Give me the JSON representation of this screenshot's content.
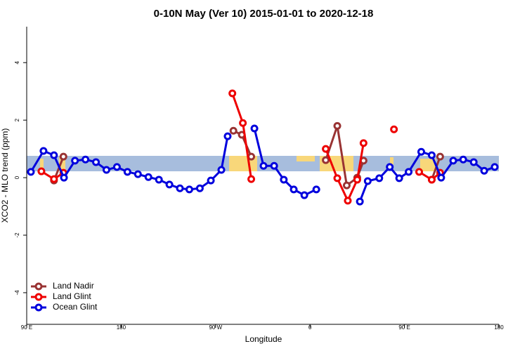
{
  "chart_data": {
    "type": "line",
    "title": "0-10N May (Ver 10)   2015-01-01 to 2020-12-18",
    "xlabel": "Longitude",
    "ylabel": "XCO2 - MLO trend (ppm)",
    "xlim": [
      90,
      540
    ],
    "ylim": [
      -5.1,
      5.25
    ],
    "xticks": [
      {
        "value": 90,
        "label": "90 E"
      },
      180,
      {
        "value": 270,
        "label": "90 W"
      },
      {
        "value": 360,
        "label": "0"
      },
      {
        "value": 450,
        "label": "90 E"
      },
      {
        "value": 540,
        "label": "180"
      }
    ],
    "yticks": [
      -4,
      -2,
      0,
      2,
      4
    ],
    "legend": "bottom-left",
    "series": [
      {
        "name": "Land Nadir",
        "color": "#993333",
        "x": [
          116,
          125,
          null,
          287,
          295,
          304,
          null,
          375,
          386,
          395,
          405,
          411,
          null,
          476,
          484
        ],
        "values": [
          -0.1,
          0.73,
          null,
          1.63,
          1.49,
          0.73,
          null,
          0.61,
          1.8,
          -0.27,
          0.0,
          0.59,
          null,
          -0.07,
          0.73
        ]
      },
      {
        "name": "Land Glint",
        "color": "#ee0000",
        "x": [
          104,
          116,
          125,
          null,
          286,
          296,
          304,
          null,
          375,
          386,
          396,
          405,
          411,
          null,
          440,
          null,
          464,
          476,
          484
        ],
        "values": [
          0.22,
          -0.05,
          0.17,
          null,
          2.93,
          1.9,
          -0.05,
          null,
          1.0,
          -0.02,
          -0.8,
          -0.07,
          1.2,
          null,
          1.68,
          null,
          0.2,
          -0.07,
          0.17
        ]
      },
      {
        "name": "Ocean Glint",
        "color": "#0000dd",
        "x": [
          94,
          106,
          116,
          125.5,
          136,
          146,
          156,
          166,
          176,
          186,
          196,
          206,
          216,
          226,
          236,
          245,
          255,
          265.5,
          275.5,
          281.5,
          null,
          307,
          315.7,
          325.8,
          335,
          344.5,
          354.6,
          366,
          null,
          407.5,
          415,
          426,
          436,
          445,
          454,
          466,
          476,
          485,
          496.5,
          506,
          516,
          526,
          536
        ],
        "values": [
          0.2,
          0.93,
          0.78,
          0.0,
          0.59,
          0.63,
          0.54,
          0.27,
          0.37,
          0.2,
          0.12,
          0.02,
          -0.07,
          -0.24,
          -0.37,
          -0.41,
          -0.37,
          -0.1,
          0.27,
          1.44,
          null,
          1.71,
          0.41,
          0.41,
          -0.07,
          -0.41,
          -0.61,
          -0.41,
          null,
          -0.83,
          -0.12,
          -0.02,
          0.37,
          -0.02,
          0.2,
          0.9,
          0.78,
          0.0,
          0.59,
          0.63,
          0.54,
          0.24,
          0.37
        ]
      }
    ]
  }
}
